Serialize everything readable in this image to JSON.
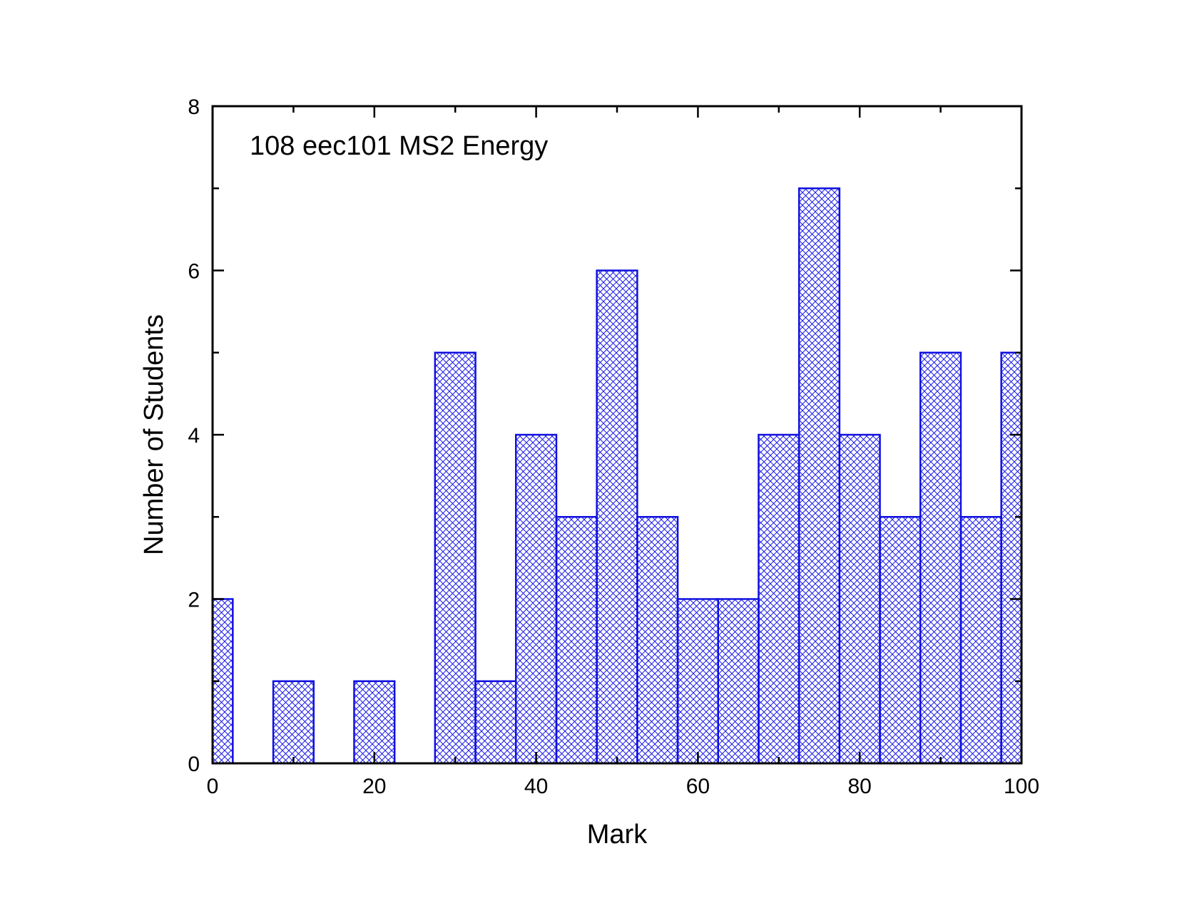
{
  "chart_data": {
    "type": "bar",
    "title": "",
    "annotation": "108 eec101 MS2 Energy",
    "xlabel": "Mark",
    "ylabel": "Number of Students",
    "xlim": [
      0,
      100
    ],
    "ylim": [
      0,
      8
    ],
    "bin_width": 5,
    "bin_centers": [
      0,
      5,
      10,
      15,
      20,
      25,
      30,
      35,
      40,
      45,
      50,
      55,
      60,
      65,
      70,
      75,
      80,
      85,
      90,
      95,
      100
    ],
    "values": [
      2,
      0,
      1,
      0,
      1,
      0,
      5,
      1,
      4,
      3,
      6,
      3,
      2,
      2,
      4,
      7,
      4,
      3,
      5,
      3,
      5
    ],
    "x_ticks": [
      "0",
      "20",
      "40",
      "60",
      "80",
      "100"
    ],
    "x_tick_values": [
      0,
      20,
      40,
      60,
      80,
      100
    ],
    "y_ticks": [
      "0",
      "2",
      "4",
      "6",
      "8"
    ],
    "y_tick_values": [
      0,
      2,
      4,
      6,
      8
    ],
    "y_minor_tick_values": [
      1,
      3,
      5,
      7
    ],
    "grid": false,
    "legend": "none",
    "colors": {
      "bar_stroke": "#1010e0",
      "bar_hatch": "#1a1ae6",
      "frame": "#000000"
    },
    "fill_pattern": "crosshatch"
  }
}
